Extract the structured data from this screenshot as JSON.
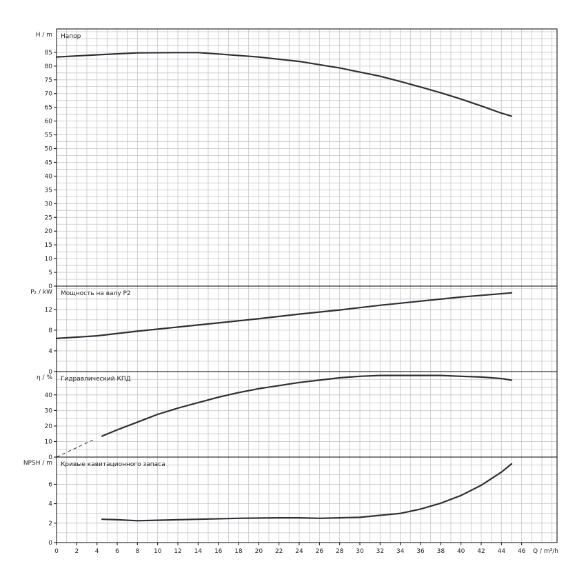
{
  "chart_data": [
    {
      "type": "line",
      "title": "Напор",
      "ylabel": "H / m",
      "ylim": [
        0,
        93.5
      ],
      "yticks": [
        0,
        5,
        10,
        15,
        20,
        25,
        30,
        35,
        40,
        45,
        50,
        55,
        60,
        65,
        70,
        75,
        80,
        85
      ],
      "xlim": [
        0,
        49.5
      ],
      "series": [
        {
          "x": [
            0,
            4,
            8,
            12,
            14,
            16,
            20,
            24,
            28,
            30,
            32,
            34,
            36,
            38,
            40,
            42,
            44,
            45
          ],
          "y": [
            83.3,
            84.1,
            84.8,
            84.9,
            84.9,
            84.4,
            83.3,
            81.7,
            79.3,
            77.8,
            76.3,
            74.4,
            72.4,
            70.3,
            68.0,
            65.5,
            62.9,
            61.8
          ]
        }
      ]
    },
    {
      "type": "line",
      "title": "Мощность на валу P2",
      "ylabel": "P₂ / kW",
      "ylim": [
        0,
        16.5
      ],
      "yticks": [
        0,
        4,
        8,
        12
      ],
      "xlim": [
        0,
        49.5
      ],
      "series": [
        {
          "x": [
            0,
            4,
            8,
            12,
            16,
            20,
            24,
            28,
            32,
            36,
            40,
            45
          ],
          "y": [
            6.4,
            6.9,
            7.8,
            8.6,
            9.4,
            10.2,
            11.1,
            11.9,
            12.8,
            13.6,
            14.4,
            15.2
          ]
        }
      ]
    },
    {
      "type": "line",
      "title": "Гидравлический КПД",
      "ylabel": "η / %",
      "ylim": [
        0,
        55
      ],
      "yticks": [
        0,
        10,
        20,
        30,
        40
      ],
      "xlim": [
        0,
        49.5
      ],
      "series": [
        {
          "x": [
            4.5,
            6,
            8,
            10,
            12,
            14,
            16,
            18,
            20,
            22,
            24,
            26,
            28,
            30,
            32,
            34,
            36,
            38,
            40,
            42,
            44,
            45
          ],
          "y": [
            13.5,
            17.5,
            22.5,
            27.5,
            31.5,
            35,
            38.5,
            41.5,
            44,
            46,
            48,
            49.5,
            51,
            52,
            52.5,
            52.5,
            52.5,
            52.5,
            52,
            51.5,
            50.5,
            49.5
          ]
        },
        {
          "line_style": "dashed",
          "x": [
            0,
            3.6
          ],
          "y": [
            0,
            11
          ]
        }
      ]
    },
    {
      "type": "line",
      "title": "Кривые кавитационного запаса",
      "ylabel": "NPSH / m",
      "ylim": [
        0,
        8.8
      ],
      "yticks": [
        0,
        2,
        4,
        6
      ],
      "xlabel": "Q / m³/h",
      "xlim": [
        0,
        49.5
      ],
      "xticks": [
        0,
        2,
        4,
        6,
        8,
        10,
        12,
        14,
        16,
        18,
        20,
        22,
        24,
        26,
        28,
        30,
        32,
        34,
        36,
        38,
        40,
        42,
        44,
        46
      ],
      "series": [
        {
          "x": [
            4.5,
            6,
            8,
            10,
            14,
            18,
            22,
            24,
            26,
            28,
            30,
            32,
            34,
            36,
            38,
            40,
            42,
            44,
            45
          ],
          "y": [
            2.4,
            2.35,
            2.25,
            2.3,
            2.4,
            2.5,
            2.55,
            2.55,
            2.5,
            2.55,
            2.6,
            2.8,
            3.0,
            3.45,
            4.05,
            4.85,
            5.9,
            7.25,
            8.1
          ]
        }
      ]
    }
  ]
}
